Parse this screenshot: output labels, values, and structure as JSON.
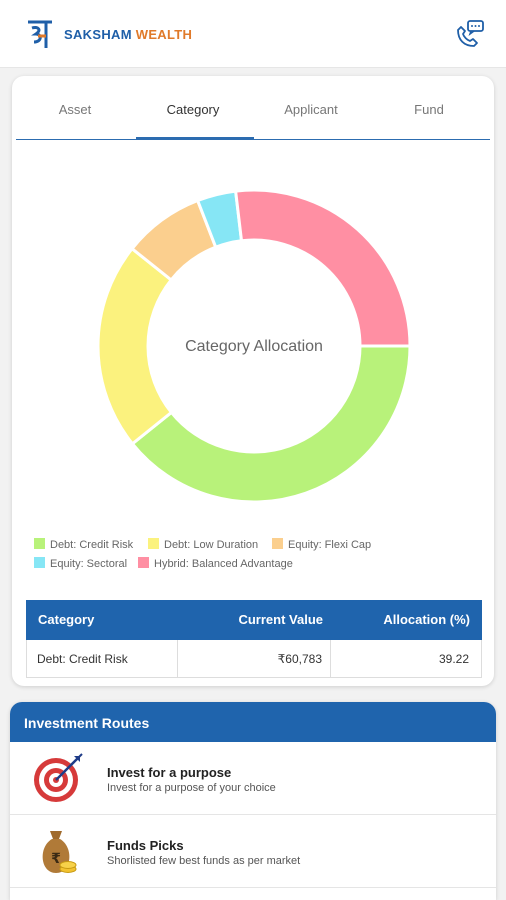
{
  "header": {
    "brand_part1": "SAKSHAM",
    "brand_part2": "WEALTH"
  },
  "tabs": [
    {
      "label": "Asset",
      "active": false
    },
    {
      "label": "Category",
      "active": true
    },
    {
      "label": "Applicant",
      "active": false
    },
    {
      "label": "Fund",
      "active": false
    }
  ],
  "chart_data": {
    "type": "pie",
    "title": "Category Allocation",
    "slices": [
      {
        "label": "Debt: Credit Risk",
        "value": 39.22,
        "color": "#b8f27a"
      },
      {
        "label": "Debt: Low Duration",
        "value": 21.5,
        "color": "#fbf27e"
      },
      {
        "label": "Equity: Flexi Cap",
        "value": 8.4,
        "color": "#fbcf8e"
      },
      {
        "label": "Equity: Sectoral",
        "value": 4.0,
        "color": "#86e6f5"
      },
      {
        "label": "Hybrid: Balanced Advantage",
        "value": 26.88,
        "color": "#ff8fa3"
      }
    ],
    "legend_position": "bottom"
  },
  "table": {
    "headers": [
      "Category",
      "Current Value",
      "Allocation (%)"
    ],
    "rows": [
      [
        "Debt: Credit Risk",
        "₹60,783",
        "39.22"
      ]
    ]
  },
  "routes": {
    "title": "Investment Routes",
    "items": [
      {
        "title": "Invest for a purpose",
        "subtitle": "Invest for a purpose of your choice",
        "icon": "target-icon"
      },
      {
        "title": "Funds Picks",
        "subtitle": "Shorlisted few best funds as per market",
        "icon": "money-bag-icon"
      }
    ]
  }
}
